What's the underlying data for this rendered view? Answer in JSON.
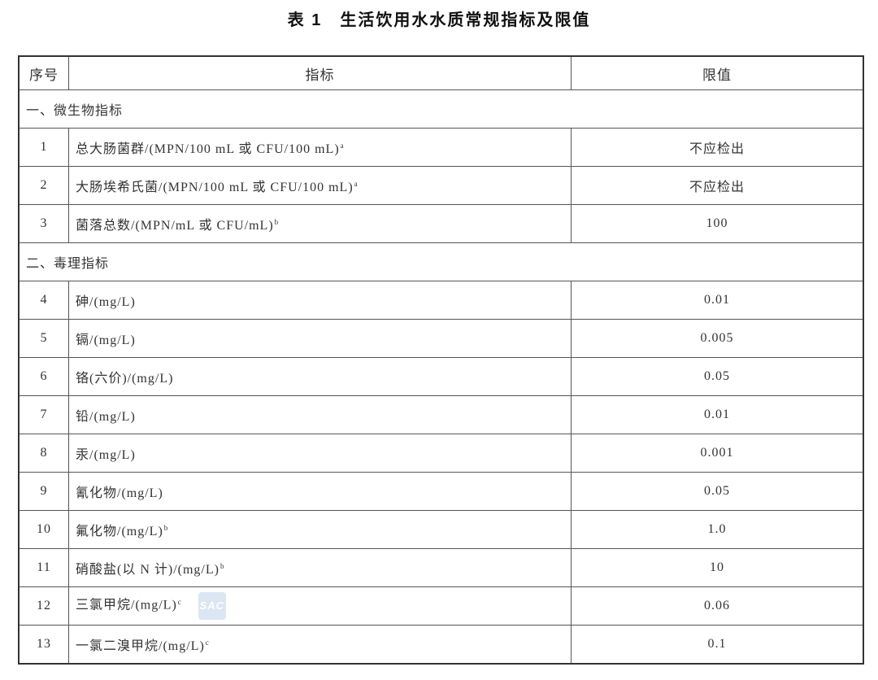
{
  "title": {
    "number": "表 1",
    "text": "生活饮用水水质常规指标及限值"
  },
  "headers": {
    "index": "序号",
    "indicator": "指标",
    "limit": "限值"
  },
  "rows": [
    {
      "type": "section",
      "label": "一、微生物指标"
    },
    {
      "type": "item",
      "index": "1",
      "indicator": "总大肠菌群/(MPN/100 mL 或 CFU/100 mL)",
      "note": "a",
      "limit": "不应检出"
    },
    {
      "type": "item",
      "index": "2",
      "indicator": "大肠埃希氏菌/(MPN/100 mL 或 CFU/100 mL)",
      "note": "a",
      "limit": "不应检出"
    },
    {
      "type": "item",
      "index": "3",
      "indicator": "菌落总数/(MPN/mL 或 CFU/mL)",
      "note": "b",
      "limit": "100"
    },
    {
      "type": "section",
      "label": "二、毒理指标"
    },
    {
      "type": "item",
      "index": "4",
      "indicator": "砷/(mg/L)",
      "note": "",
      "limit": "0.01"
    },
    {
      "type": "item",
      "index": "5",
      "indicator": "镉/(mg/L)",
      "note": "",
      "limit": "0.005"
    },
    {
      "type": "item",
      "index": "6",
      "indicator": "铬(六价)/(mg/L)",
      "note": "",
      "limit": "0.05"
    },
    {
      "type": "item",
      "index": "7",
      "indicator": "铅/(mg/L)",
      "note": "",
      "limit": "0.01"
    },
    {
      "type": "item",
      "index": "8",
      "indicator": "汞/(mg/L)",
      "note": "",
      "limit": "0.001"
    },
    {
      "type": "item",
      "index": "9",
      "indicator": "氰化物/(mg/L)",
      "note": "",
      "limit": "0.05"
    },
    {
      "type": "item",
      "index": "10",
      "indicator": "氟化物/(mg/L)",
      "note": "b",
      "limit": "1.0"
    },
    {
      "type": "item",
      "index": "11",
      "indicator": "硝酸盐(以 N 计)/(mg/L)",
      "note": "b",
      "limit": "10"
    },
    {
      "type": "item",
      "index": "12",
      "indicator": "三氯甲烷/(mg/L)",
      "note": "c",
      "limit": "0.06",
      "watermark": "SAC"
    },
    {
      "type": "item",
      "index": "13",
      "indicator": "一氯二溴甲烷/(mg/L)",
      "note": "c",
      "limit": "0.1"
    }
  ]
}
